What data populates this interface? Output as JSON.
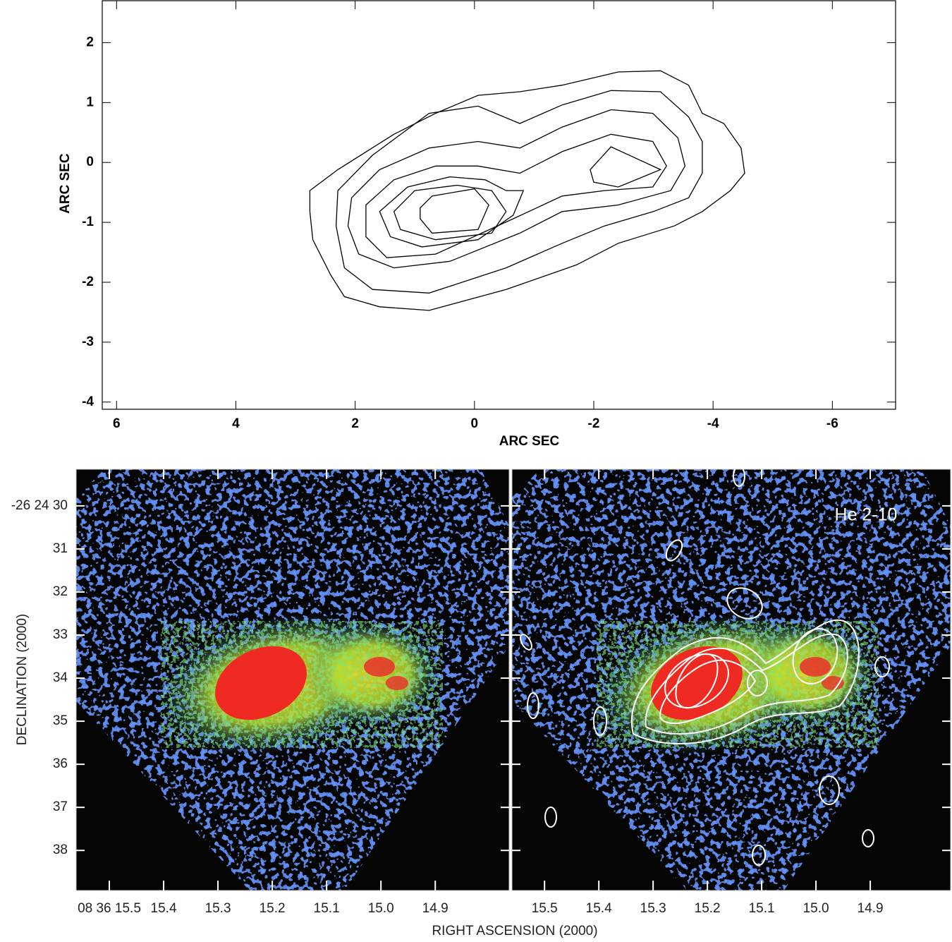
{
  "chart_data": [
    {
      "type": "contour",
      "xlabel": "ARC SEC",
      "ylabel": "ARC SEC",
      "xlim": [
        6.24,
        -7.06
      ],
      "ylim": [
        -4.12,
        2.7
      ],
      "xticks": [
        6,
        4,
        2,
        0,
        -2,
        -4,
        -6
      ],
      "yticks": [
        2,
        1,
        0,
        -1,
        -2,
        -3,
        -4
      ],
      "color": "#000000",
      "contours": [
        {
          "x": [
            2.76,
            2.29,
            1.35,
            0.65,
            -0.06,
            -0.76,
            -1.47,
            -2.41,
            -3.12,
            -3.59,
            -3.82,
            -4.18,
            -4.47,
            -4.53,
            -4.29,
            -3.82,
            -3.35,
            -2.41,
            -1.71,
            -0.53,
            0.76,
            1.59,
            2.18,
            2.41,
            2.71,
            2.76
          ],
          "y": [
            -0.47,
            -0.12,
            0.47,
            0.82,
            1.12,
            1.18,
            1.29,
            1.51,
            1.53,
            1.29,
            0.82,
            0.65,
            0.24,
            -0.18,
            -0.47,
            -0.82,
            -1.06,
            -1.35,
            -1.71,
            -2.12,
            -2.47,
            -2.41,
            -2.24,
            -1.88,
            -1.29,
            -0.82
          ]
        },
        {
          "x": [
            2.29,
            1.71,
            0.76,
            -0.06,
            -0.76,
            -1.47,
            -2.29,
            -3.12,
            -3.59,
            -3.82,
            -3.82,
            -3.59,
            -3.0,
            -2.18,
            -1.47,
            -0.53,
            0.76,
            1.71,
            2.18,
            2.32
          ],
          "y": [
            -0.47,
            0.12,
            0.82,
            0.94,
            0.65,
            0.96,
            1.2,
            1.18,
            0.76,
            0.35,
            -0.18,
            -0.59,
            -0.82,
            -1.06,
            -1.35,
            -1.76,
            -2.18,
            -2.12,
            -1.76,
            -1.06
          ]
        },
        {
          "x": [
            2.06,
            1.59,
            0.76,
            -0.06,
            -0.76,
            -1.47,
            -2.29,
            -2.99,
            -3.41,
            -3.53,
            -3.29,
            -2.41,
            -1.47,
            -0.76,
            0.41,
            1.35,
            1.94,
            2.12
          ],
          "y": [
            -0.59,
            -0.12,
            0.24,
            0.35,
            0.24,
            0.59,
            0.88,
            0.82,
            0.41,
            -0.06,
            -0.47,
            -0.71,
            -0.82,
            -1.18,
            -1.65,
            -1.76,
            -1.53,
            -1.06
          ]
        },
        {
          "x": [
            1.82,
            1.35,
            0.65,
            -0.06,
            -0.76,
            -1.47,
            -2.29,
            -2.99,
            -3.22,
            -2.99,
            -2.18,
            -1.47,
            -0.65,
            0.65,
            1.47,
            1.82
          ],
          "y": [
            -0.71,
            -0.29,
            -0.06,
            -0.06,
            -0.18,
            0.18,
            0.47,
            0.35,
            -0.06,
            -0.41,
            -0.47,
            -0.56,
            -0.94,
            -1.53,
            -1.59,
            -1.24
          ]
        },
        {
          "x": [
            -1.94,
            -2.29,
            -3.12,
            -2.41,
            -2.0
          ],
          "y": [
            -0.12,
            0.26,
            -0.12,
            -0.41,
            -0.33
          ]
        },
        {
          "x": [
            1.59,
            1.12,
            0.41,
            -0.18,
            -0.53,
            -0.82,
            -0.65,
            -0.06,
            0.88,
            1.41
          ],
          "y": [
            -0.82,
            -0.41,
            -0.24,
            -0.29,
            -0.47,
            -0.47,
            -0.88,
            -1.29,
            -1.41,
            -1.24
          ]
        },
        {
          "x": [
            1.35,
            1.0,
            0.29,
            -0.29,
            -0.53,
            -0.29,
            0.65,
            1.24
          ],
          "y": [
            -0.82,
            -0.47,
            -0.38,
            -0.47,
            -0.82,
            -1.18,
            -1.29,
            -1.12
          ]
        },
        {
          "x": [
            0.91,
            0.71,
            0.0,
            -0.24,
            -0.06,
            0.71,
            0.91
          ],
          "y": [
            -0.76,
            -0.56,
            -0.44,
            -0.71,
            -1.12,
            -1.18,
            -0.94
          ]
        }
      ]
    },
    {
      "type": "image",
      "xlabel": "RIGHT ASCENSION (2000)",
      "ylabel": "DECLINATION (2000)",
      "xlim": [
        15.561,
        14.764
      ],
      "ylim": [
        38.93,
        29.15
      ],
      "xticks": [
        {
          "value": 15.5,
          "label": "08 36 15.5"
        },
        15.4,
        15.3,
        15.2,
        15.1,
        {
          "value": 15,
          "label": "15.0"
        },
        14.9
      ],
      "yticks": [
        {
          "value": 30,
          "label": "-26 24 30"
        },
        31,
        32,
        33,
        34,
        35,
        36,
        37,
        38
      ]
    },
    {
      "type": "image",
      "annotation": "He 2-10",
      "xlim": [
        15.56,
        14.752
      ],
      "ylim": [
        38.93,
        29.15
      ],
      "xticks": [
        15.5,
        15.4,
        15.3,
        15.2,
        15.1,
        {
          "value": 15,
          "label": "15.0"
        },
        14.9
      ],
      "yticks": [
        30,
        31,
        32,
        33,
        34,
        35,
        36,
        37,
        38
      ],
      "contour_color": "#ffffff"
    }
  ]
}
